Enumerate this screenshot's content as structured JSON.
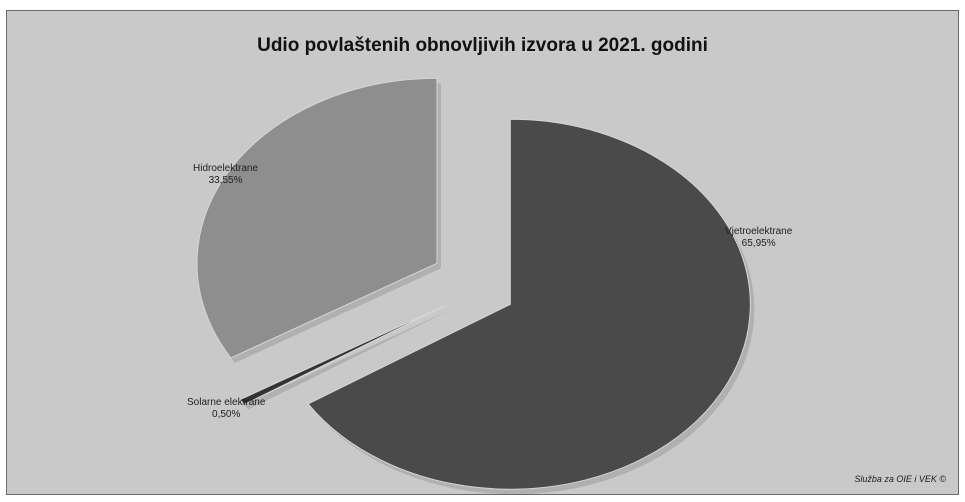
{
  "chart_data": {
    "type": "pie",
    "title": "Udio povlaštenih obnovljivih izvora u 2021. godini",
    "exploded": true,
    "slices": [
      {
        "name": "Vjetroelektrane",
        "value": 65.95,
        "value_label": "65,95%",
        "color": "#4a4a4a"
      },
      {
        "name": "Solarne elektrane",
        "value": 0.5,
        "value_label": "0,50%",
        "color": "#333333"
      },
      {
        "name": "Hidroelektrane",
        "value": 33.55,
        "value_label": "33,55%",
        "color": "#8e8e8e"
      }
    ]
  },
  "footer": {
    "source": "Služba za OIE i VEK ©"
  }
}
